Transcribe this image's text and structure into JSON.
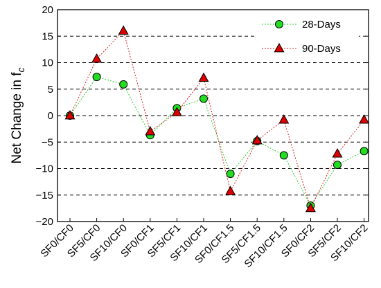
{
  "chart_data": {
    "type": "line",
    "title": "",
    "xlabel": "",
    "ylabel": "Net Change in f",
    "ylabel_subscript": "c",
    "ylim": [
      -20,
      20
    ],
    "yticks": [
      -20,
      -15,
      -10,
      -5,
      0,
      5,
      10,
      15,
      20
    ],
    "ytick_labels": [
      "−20",
      "−15",
      "−10",
      "−5",
      "0",
      "5",
      "10",
      "15",
      "20"
    ],
    "grid": "horizontal-dashed",
    "legend_position": "top-right",
    "categories": [
      "SF0/CF0",
      "SF5/CF0",
      "SF10/CF0",
      "SF0/CF1",
      "SF5/CF1",
      "SF10/CF1",
      "SF0/CF1.5",
      "SF5/CF1.5",
      "SF10/CF1.5",
      "SF0/CF2",
      "SF5/CF2",
      "SF10/CF2"
    ],
    "series": [
      {
        "name": "28-Days",
        "marker": "circle",
        "color": "#22dd22",
        "line_color": "#33cc33",
        "values": [
          0,
          7.3,
          5.9,
          -3.7,
          1.4,
          3.2,
          -11.0,
          -4.8,
          -7.5,
          -17.0,
          -9.3,
          -6.7
        ]
      },
      {
        "name": "90-Days",
        "marker": "triangle",
        "color": "#dd0000",
        "line_color": "#dd2222",
        "values": [
          0,
          10.7,
          16.0,
          -3.0,
          0.6,
          7.1,
          -14.3,
          -4.7,
          -0.8,
          -17.5,
          -7.2,
          -0.8
        ]
      }
    ]
  }
}
